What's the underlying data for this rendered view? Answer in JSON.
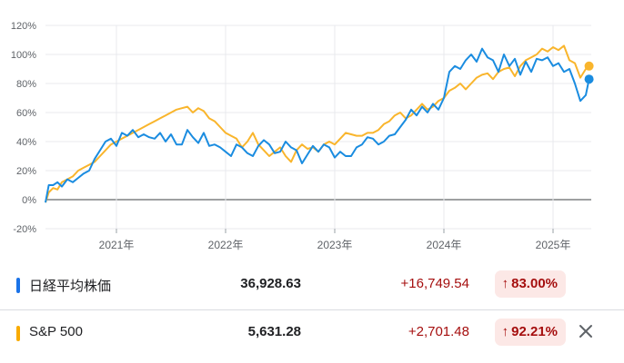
{
  "chart_data": {
    "type": "line",
    "ylim": [
      -20,
      120
    ],
    "yticks": [
      "120%",
      "100%",
      "80%",
      "60%",
      "40%",
      "20%",
      "0%",
      "-20%"
    ],
    "ytick_values": [
      120,
      100,
      80,
      60,
      40,
      20,
      0,
      -20
    ],
    "xlim": [
      2020.35,
      2025.35
    ],
    "xtick_values": [
      2021,
      2022,
      2023,
      2024,
      2025
    ],
    "xticks": [
      "2021年",
      "2022年",
      "2023年",
      "2024年",
      "2025年"
    ],
    "grid": true,
    "series": [
      {
        "name": "日経平均株価",
        "color": "#1a8ce0",
        "x": [
          2020.35,
          2020.38,
          2020.42,
          2020.46,
          2020.5,
          2020.55,
          2020.6,
          2020.65,
          2020.7,
          2020.75,
          2020.8,
          2020.85,
          2020.9,
          2020.95,
          2021.0,
          2021.05,
          2021.1,
          2021.15,
          2021.2,
          2021.25,
          2021.3,
          2021.35,
          2021.4,
          2021.45,
          2021.5,
          2021.55,
          2021.6,
          2021.65,
          2021.7,
          2021.75,
          2021.8,
          2021.85,
          2021.9,
          2021.95,
          2022.0,
          2022.05,
          2022.1,
          2022.15,
          2022.2,
          2022.25,
          2022.3,
          2022.35,
          2022.4,
          2022.45,
          2022.5,
          2022.55,
          2022.6,
          2022.65,
          2022.7,
          2022.75,
          2022.8,
          2022.85,
          2022.9,
          2022.95,
          2023.0,
          2023.05,
          2023.1,
          2023.15,
          2023.2,
          2023.25,
          2023.3,
          2023.35,
          2023.4,
          2023.45,
          2023.5,
          2023.55,
          2023.6,
          2023.65,
          2023.7,
          2023.75,
          2023.8,
          2023.85,
          2023.9,
          2023.95,
          2024.0,
          2024.05,
          2024.1,
          2024.15,
          2024.2,
          2024.25,
          2024.3,
          2024.35,
          2024.4,
          2024.45,
          2024.5,
          2024.55,
          2024.6,
          2024.65,
          2024.7,
          2024.75,
          2024.8,
          2024.85,
          2024.9,
          2024.95,
          2025.0,
          2025.05,
          2025.1,
          2025.15,
          2025.2,
          2025.25,
          2025.3,
          2025.33
        ],
        "y": [
          -2,
          10,
          10,
          12,
          9,
          14,
          12,
          15,
          18,
          20,
          28,
          34,
          40,
          42,
          37,
          46,
          44,
          48,
          43,
          45,
          43,
          42,
          46,
          40,
          45,
          38,
          38,
          48,
          43,
          39,
          46,
          37,
          38,
          36,
          33,
          30,
          38,
          36,
          32,
          30,
          37,
          41,
          38,
          32,
          33,
          40,
          36,
          34,
          25,
          31,
          37,
          33,
          38,
          36,
          29,
          33,
          30,
          30,
          36,
          38,
          43,
          42,
          38,
          40,
          44,
          45,
          50,
          55,
          62,
          58,
          64,
          60,
          66,
          62,
          70,
          88,
          92,
          90,
          96,
          100,
          95,
          104,
          98,
          96,
          88,
          100,
          92,
          97,
          86,
          95,
          88,
          97,
          96,
          98,
          92,
          94,
          88,
          90,
          80,
          68,
          72,
          83
        ]
      },
      {
        "name": "S&P 500",
        "color": "#f9b52c",
        "x": [
          2020.35,
          2020.38,
          2020.42,
          2020.46,
          2020.5,
          2020.55,
          2020.6,
          2020.65,
          2020.7,
          2020.75,
          2020.8,
          2020.85,
          2020.9,
          2020.95,
          2021.0,
          2021.05,
          2021.1,
          2021.15,
          2021.2,
          2021.25,
          2021.3,
          2021.35,
          2021.4,
          2021.45,
          2021.5,
          2021.55,
          2021.6,
          2021.65,
          2021.7,
          2021.75,
          2021.8,
          2021.85,
          2021.9,
          2021.95,
          2022.0,
          2022.05,
          2022.1,
          2022.15,
          2022.2,
          2022.25,
          2022.3,
          2022.35,
          2022.4,
          2022.45,
          2022.5,
          2022.55,
          2022.6,
          2022.65,
          2022.7,
          2022.75,
          2022.8,
          2022.85,
          2022.9,
          2022.95,
          2023.0,
          2023.05,
          2023.1,
          2023.15,
          2023.2,
          2023.25,
          2023.3,
          2023.35,
          2023.4,
          2023.45,
          2023.5,
          2023.55,
          2023.6,
          2023.65,
          2023.7,
          2023.75,
          2023.8,
          2023.85,
          2023.9,
          2023.95,
          2024.0,
          2024.05,
          2024.1,
          2024.15,
          2024.2,
          2024.25,
          2024.3,
          2024.35,
          2024.4,
          2024.45,
          2024.5,
          2024.55,
          2024.6,
          2024.65,
          2024.7,
          2024.75,
          2024.8,
          2024.85,
          2024.9,
          2024.95,
          2025.0,
          2025.05,
          2025.1,
          2025.15,
          2025.2,
          2025.25,
          2025.3,
          2025.33
        ],
        "y": [
          -2,
          5,
          8,
          7,
          12,
          14,
          16,
          20,
          22,
          24,
          26,
          30,
          34,
          38,
          40,
          42,
          44,
          46,
          48,
          50,
          52,
          54,
          56,
          58,
          60,
          62,
          63,
          64,
          60,
          63,
          61,
          56,
          54,
          50,
          46,
          44,
          42,
          36,
          40,
          46,
          38,
          34,
          30,
          33,
          36,
          30,
          26,
          34,
          38,
          35,
          36,
          33,
          38,
          40,
          38,
          42,
          46,
          45,
          44,
          44,
          46,
          46,
          48,
          52,
          54,
          58,
          60,
          56,
          58,
          62,
          66,
          62,
          64,
          68,
          70,
          75,
          77,
          80,
          76,
          80,
          84,
          86,
          87,
          83,
          88,
          90,
          91,
          85,
          92,
          96,
          98,
          100,
          104,
          102,
          105,
          103,
          106,
          96,
          94,
          84,
          90,
          92
        ]
      }
    ]
  },
  "rows": [
    {
      "name": "日経平均株価",
      "color": "#1a73e8",
      "price": "36,928.63",
      "change": "+16,749.54",
      "arrow": "↑",
      "pct": "83.00%"
    },
    {
      "name": "S&P 500",
      "color": "#f9ab00",
      "price": "5,631.28",
      "change": "+2,701.48",
      "arrow": "↑",
      "pct": "92.21%"
    }
  ]
}
